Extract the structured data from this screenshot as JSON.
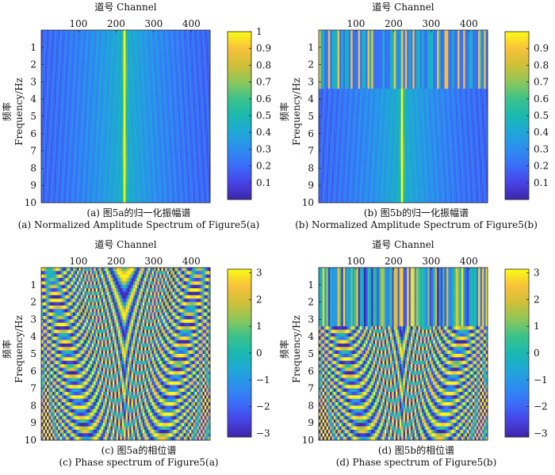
{
  "colormap": [
    "#3e26a8",
    "#4743e6",
    "#3b6cf9",
    "#2d8ef0",
    "#1fa7d8",
    "#19b8b0",
    "#3cc28a",
    "#8cc75a",
    "#d0bf39",
    "#f8c13a",
    "#f9fb15"
  ],
  "chart_data": [
    {
      "id": "a",
      "type": "heatmap",
      "kind": "amplitude",
      "xlabel": "道号 Channel",
      "ylabel_zh": "频率",
      "ylabel": "Frequency/Hz",
      "x_ticks": [
        100,
        200,
        300,
        400
      ],
      "y_ticks": [
        1,
        2,
        3,
        4,
        5,
        6,
        7,
        8,
        9,
        10
      ],
      "xlim": [
        1,
        450
      ],
      "ylim": [
        0,
        10
      ],
      "colorbar_ticks": [
        "0.1",
        "0.2",
        "0.3",
        "0.4",
        "0.5",
        "0.6",
        "0.7",
        "0.8",
        "0.9",
        "1"
      ],
      "colorbar_range": [
        0,
        1
      ],
      "peak_channel": 222,
      "noise_band_top_hz": null,
      "caption_zh": "(a) 图5a的归一化振幅谱",
      "caption_en": "(a) Normalized Amplitude Spectrum of Figure5(a)"
    },
    {
      "id": "b",
      "type": "heatmap",
      "kind": "amplitude",
      "xlabel": "道号 Channel",
      "ylabel_zh": "频率",
      "ylabel": "Frequency/Hz",
      "x_ticks": [
        100,
        200,
        300,
        400
      ],
      "y_ticks": [
        1,
        2,
        3,
        4,
        5,
        6,
        7,
        8,
        9,
        10
      ],
      "xlim": [
        1,
        450
      ],
      "ylim": [
        0,
        10
      ],
      "colorbar_ticks": [
        "0.1",
        "0.2",
        "0.3",
        "0.4",
        "0.5",
        "0.6",
        "0.7",
        "0.8",
        "0.9"
      ],
      "colorbar_range": [
        0,
        1
      ],
      "peak_channel": 222,
      "noise_band_top_hz": 3.4,
      "caption_zh": "(b) 图5b的归一化振幅谱",
      "caption_en": "(b) Normalized Amplitude Spectrum of Figure5(b)"
    },
    {
      "id": "c",
      "type": "heatmap",
      "kind": "phase",
      "xlabel": "道号 Channel",
      "ylabel_zh": "频率",
      "ylabel": "Frequency/Hz",
      "x_ticks": [
        100,
        200,
        300,
        400
      ],
      "y_ticks": [
        1,
        2,
        3,
        4,
        5,
        6,
        7,
        8,
        9,
        10
      ],
      "xlim": [
        1,
        450
      ],
      "ylim": [
        0,
        10
      ],
      "colorbar_ticks": [
        "−3",
        "−2",
        "−1",
        "0",
        "1",
        "2",
        "3"
      ],
      "colorbar_range": [
        -3.14,
        3.14
      ],
      "peak_channel": 222,
      "noise_band_top_hz": null,
      "caption_zh": "(c) 图5a的相位谱",
      "caption_en": "(c) Phase spectrum of Figure5(a)"
    },
    {
      "id": "d",
      "type": "heatmap",
      "kind": "phase",
      "xlabel": "道号 Channel",
      "ylabel_zh": "频率",
      "ylabel": "Frequency/Hz",
      "x_ticks": [
        100,
        200,
        300,
        400
      ],
      "y_ticks": [
        1,
        2,
        3,
        4,
        5,
        6,
        7,
        8,
        9,
        10
      ],
      "xlim": [
        1,
        450
      ],
      "ylim": [
        0,
        10
      ],
      "colorbar_ticks": [
        "−3",
        "−2",
        "−1",
        "0",
        "1",
        "2",
        "3"
      ],
      "colorbar_range": [
        -3.14,
        3.14
      ],
      "peak_channel": 222,
      "noise_band_top_hz": 3.4,
      "caption_zh": "(d) 图5b的相位谱",
      "caption_en": "(d) Phase spectrum of Figure5(b)"
    }
  ]
}
